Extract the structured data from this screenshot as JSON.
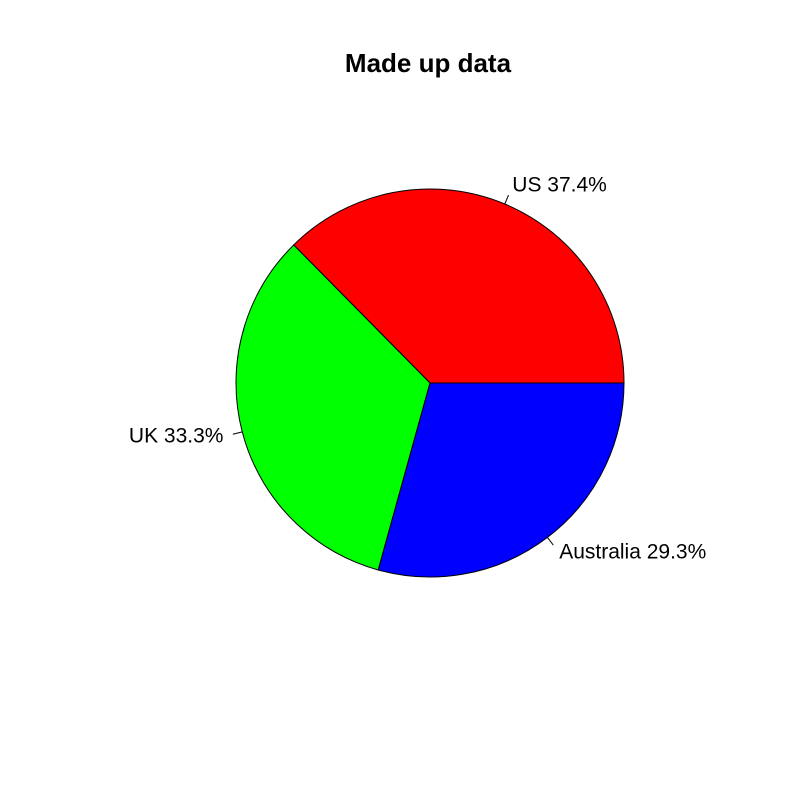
{
  "chart_data": {
    "type": "pie",
    "title": "Made up data",
    "categories": [
      "US",
      "UK",
      "Australia"
    ],
    "values": [
      37.4,
      33.3,
      29.3
    ],
    "labels": [
      "US 37.4%",
      "UK 33.3%",
      "Australia 29.3%"
    ],
    "colors": [
      "#ff0000",
      "#00ff00",
      "#0000ff"
    ],
    "start_angle_deg": 0,
    "direction": "counterclockwise",
    "legend": "none"
  }
}
